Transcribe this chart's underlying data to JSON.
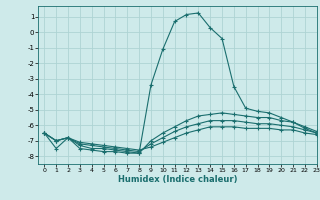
{
  "title": "",
  "xlabel": "Humidex (Indice chaleur)",
  "ylabel": "",
  "bg_color": "#ceeaea",
  "grid_color": "#aed4d4",
  "line_color": "#1a6e6e",
  "xlim": [
    -0.5,
    23
  ],
  "ylim": [
    -8.5,
    1.7
  ],
  "yticks": [
    1,
    0,
    -1,
    -2,
    -3,
    -4,
    -5,
    -6,
    -7,
    -8
  ],
  "xticks": [
    0,
    1,
    2,
    3,
    4,
    5,
    6,
    7,
    8,
    9,
    10,
    11,
    12,
    13,
    14,
    15,
    16,
    17,
    18,
    19,
    20,
    21,
    22,
    23
  ],
  "series": [
    {
      "x": [
        0,
        1,
        2,
        3,
        4,
        5,
        6,
        7,
        8,
        9,
        10,
        11,
        12,
        13,
        14,
        15,
        16,
        17,
        18,
        19,
        20,
        21,
        22,
        23
      ],
      "y": [
        -6.5,
        -7.5,
        -6.8,
        -7.5,
        -7.6,
        -7.7,
        -7.7,
        -7.8,
        -7.8,
        -3.4,
        -1.1,
        0.7,
        1.15,
        1.25,
        0.3,
        -0.4,
        -3.5,
        -4.9,
        -5.1,
        -5.2,
        -5.5,
        -5.8,
        -6.2,
        -6.5
      ]
    },
    {
      "x": [
        0,
        1,
        2,
        3,
        4,
        5,
        6,
        7,
        8,
        9,
        10,
        11,
        12,
        13,
        14,
        15,
        16,
        17,
        18,
        19,
        20,
        21,
        22,
        23
      ],
      "y": [
        -6.5,
        -7.0,
        -6.8,
        -7.3,
        -7.5,
        -7.5,
        -7.6,
        -7.7,
        -7.8,
        -7.0,
        -6.5,
        -6.1,
        -5.7,
        -5.4,
        -5.3,
        -5.2,
        -5.3,
        -5.4,
        -5.5,
        -5.5,
        -5.7,
        -5.8,
        -6.1,
        -6.4
      ]
    },
    {
      "x": [
        0,
        1,
        2,
        3,
        4,
        5,
        6,
        7,
        8,
        9,
        10,
        11,
        12,
        13,
        14,
        15,
        16,
        17,
        18,
        19,
        20,
        21,
        22,
        23
      ],
      "y": [
        -6.5,
        -7.0,
        -6.8,
        -7.2,
        -7.3,
        -7.4,
        -7.5,
        -7.6,
        -7.7,
        -7.2,
        -6.8,
        -6.4,
        -6.1,
        -5.9,
        -5.7,
        -5.7,
        -5.7,
        -5.8,
        -5.9,
        -5.9,
        -6.0,
        -6.1,
        -6.3,
        -6.5
      ]
    },
    {
      "x": [
        0,
        1,
        2,
        3,
        4,
        5,
        6,
        7,
        8,
        9,
        10,
        11,
        12,
        13,
        14,
        15,
        16,
        17,
        18,
        19,
        20,
        21,
        22,
        23
      ],
      "y": [
        -6.5,
        -7.0,
        -6.8,
        -7.1,
        -7.2,
        -7.3,
        -7.4,
        -7.5,
        -7.6,
        -7.4,
        -7.1,
        -6.8,
        -6.5,
        -6.3,
        -6.1,
        -6.1,
        -6.1,
        -6.2,
        -6.2,
        -6.2,
        -6.3,
        -6.3,
        -6.5,
        -6.6
      ]
    }
  ]
}
